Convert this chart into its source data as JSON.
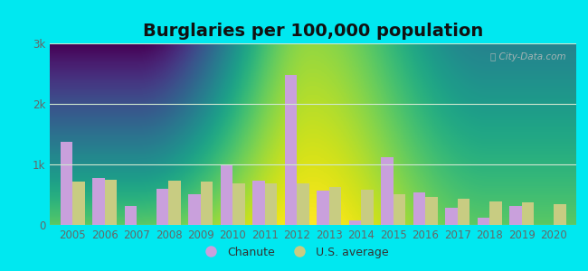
{
  "title": "Burglaries per 100,000 population",
  "years": [
    2005,
    2006,
    2007,
    2008,
    2009,
    2010,
    2011,
    2012,
    2013,
    2014,
    2015,
    2016,
    2017,
    2018,
    2019,
    2020
  ],
  "chanute": [
    1380,
    780,
    320,
    600,
    510,
    1000,
    730,
    2480,
    570,
    80,
    1120,
    530,
    280,
    120,
    310,
    0
  ],
  "us_average": [
    720,
    740,
    0,
    730,
    710,
    680,
    680,
    680,
    620,
    580,
    510,
    470,
    430,
    390,
    370,
    340
  ],
  "chanute_color": "#c9a0dc",
  "us_avg_color": "#c8cc82",
  "outer_bg_color": "#00e8f0",
  "plot_bg_top": "#caeedd",
  "plot_bg_bottom": "#eaf5ea",
  "ylim": [
    0,
    3000
  ],
  "ytick_labels": [
    "0",
    "1k",
    "2k",
    "3k"
  ],
  "ytick_vals": [
    0,
    1000,
    2000,
    3000
  ],
  "grid_color": "#d0e8d0",
  "bar_width": 0.38,
  "title_fontsize": 14,
  "tick_fontsize": 8.5,
  "legend_label_chanute": "Chanute",
  "legend_label_us": "U.S. average",
  "watermark": "City-Data.com"
}
